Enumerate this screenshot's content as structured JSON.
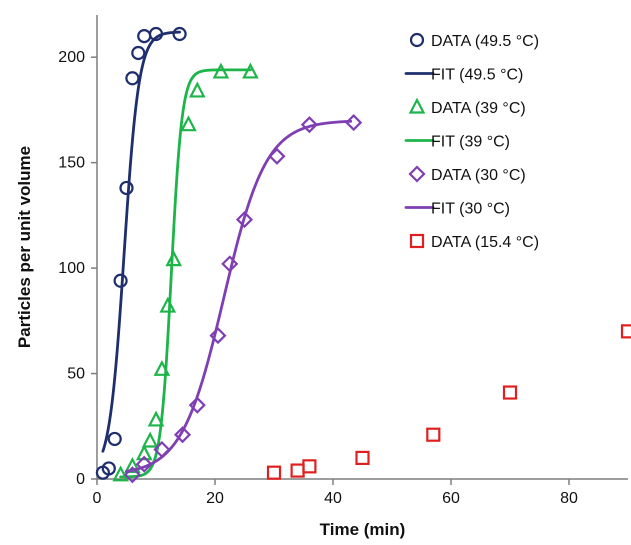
{
  "chart_data": {
    "type": "scatter",
    "xlabel": "Time (min)",
    "ylabel": "Particles per unit volume",
    "xlim": [
      0,
      90
    ],
    "ylim": [
      0,
      220
    ],
    "xticks": [
      0,
      20,
      40,
      60,
      80
    ],
    "yticks": [
      0,
      50,
      100,
      150,
      200
    ],
    "grid": false,
    "legend_position": "top-right",
    "legend": [
      "DATA (49.5 °C)",
      "FIT (49.5 °C)",
      "DATA (39 °C)",
      "FIT (39 °C)",
      "DATA (30 °C)",
      "FIT (30 °C)",
      "DATA (15.4 °C)"
    ],
    "series": [
      {
        "name": "DATA (49.5 °C)",
        "kind": "data",
        "marker": "circle",
        "color": "#1f2f6e",
        "points": [
          [
            1,
            3
          ],
          [
            2,
            5
          ],
          [
            3,
            19
          ],
          [
            4,
            94
          ],
          [
            5,
            138
          ],
          [
            6,
            190
          ],
          [
            7,
            202
          ],
          [
            8,
            210
          ],
          [
            10,
            211
          ],
          [
            14,
            211
          ]
        ]
      },
      {
        "name": "FIT (49.5 °C)",
        "kind": "fit",
        "color": "#1f2f6e",
        "model": {
          "baseline": 2,
          "amplitude": 210,
          "midpoint": 4.6,
          "slope": 0.8
        },
        "domain": [
          1,
          14
        ]
      },
      {
        "name": "DATA (39 °C)",
        "kind": "data",
        "marker": "triangle",
        "color": "#1db54a",
        "points": [
          [
            4,
            2
          ],
          [
            6,
            6
          ],
          [
            8,
            12
          ],
          [
            9,
            18
          ],
          [
            10,
            28
          ],
          [
            11,
            52
          ],
          [
            12,
            82
          ],
          [
            13,
            104
          ],
          [
            15.5,
            168
          ],
          [
            17,
            184
          ],
          [
            21,
            193
          ],
          [
            26,
            193
          ]
        ]
      },
      {
        "name": "FIT (39 °C)",
        "kind": "fit",
        "color": "#1db54a",
        "model": {
          "baseline": 1,
          "amplitude": 193,
          "midpoint": 12.6,
          "slope": 1.1
        },
        "domain": [
          4,
          26
        ]
      },
      {
        "name": "DATA (30 °C)",
        "kind": "data",
        "marker": "diamond",
        "color": "#7f3fb3",
        "points": [
          [
            6,
            2
          ],
          [
            8,
            7
          ],
          [
            11,
            14
          ],
          [
            14.5,
            21
          ],
          [
            17,
            35
          ],
          [
            20.5,
            68
          ],
          [
            22.5,
            102
          ],
          [
            25,
            123
          ],
          [
            30.5,
            153
          ],
          [
            36,
            168
          ],
          [
            43.5,
            169
          ]
        ]
      },
      {
        "name": "FIT (30 °C)",
        "kind": "fit",
        "color": "#7f3fb3",
        "model": {
          "baseline": 2,
          "amplitude": 168,
          "midpoint": 21.5,
          "slope": 0.28
        },
        "domain": [
          5,
          43
        ]
      },
      {
        "name": "DATA (15.4 °C)",
        "kind": "data",
        "marker": "square",
        "color": "#e02020",
        "points": [
          [
            30,
            3
          ],
          [
            34,
            4
          ],
          [
            36,
            6
          ],
          [
            45,
            10
          ],
          [
            57,
            21
          ],
          [
            70,
            41
          ],
          [
            90,
            70
          ]
        ]
      }
    ]
  }
}
